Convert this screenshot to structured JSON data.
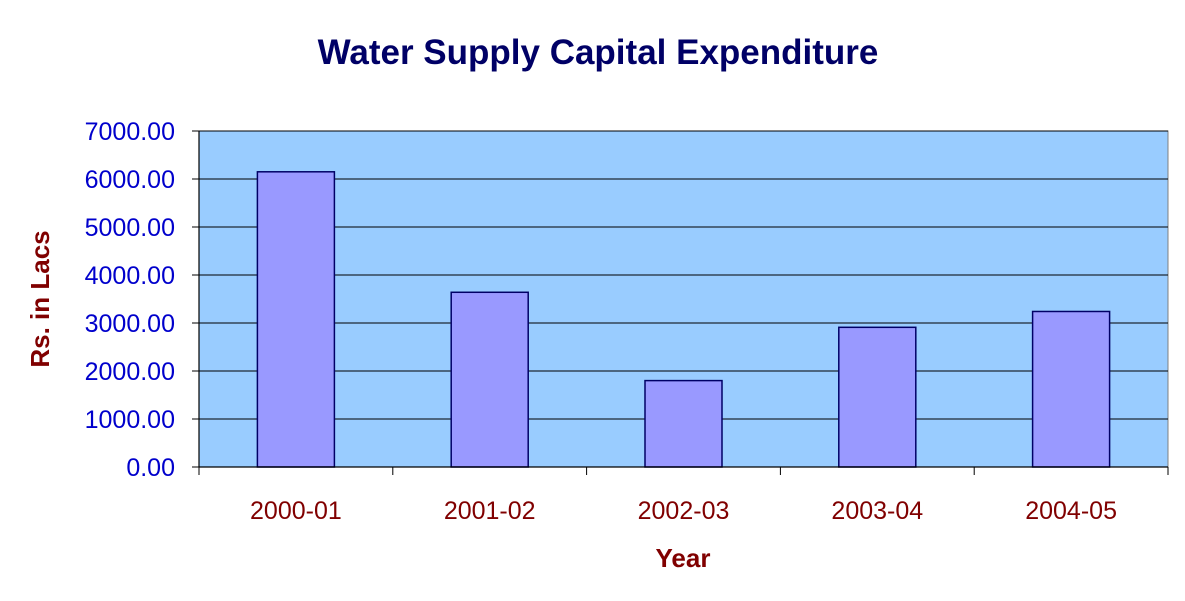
{
  "chart_data": {
    "type": "bar",
    "title": "Water Supply Capital Expenditure",
    "xlabel": "Year",
    "ylabel": "Rs. in Lacs",
    "categories": [
      "2000-01",
      "2001-02",
      "2002-03",
      "2003-04",
      "2004-05"
    ],
    "values": [
      6150,
      3640,
      1800,
      2910,
      3240
    ],
    "ylim": [
      0,
      7000
    ],
    "yticks": [
      "0.00",
      "1000.00",
      "2000.00",
      "3000.00",
      "4000.00",
      "5000.00",
      "6000.00",
      "7000.00"
    ],
    "grid": true,
    "legend": "none",
    "colors": {
      "plot_background": "#99ccff",
      "bar_fill": "#9999ff",
      "bar_stroke": "#000066",
      "gridline": "#000000",
      "title": "#000066",
      "y_tick_text": "#0000cc",
      "x_text": "#800000"
    }
  }
}
